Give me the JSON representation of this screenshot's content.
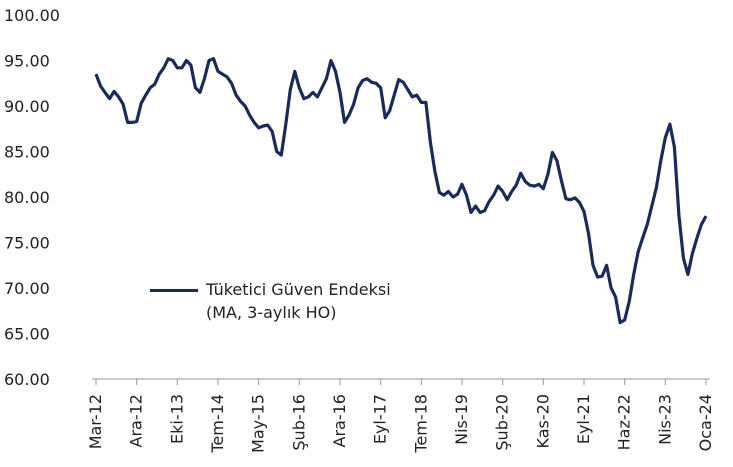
{
  "chart_data": {
    "type": "line",
    "categories": [
      "Mar-12",
      null,
      null,
      null,
      null,
      null,
      null,
      null,
      null,
      "Ara-12",
      null,
      null,
      null,
      null,
      null,
      null,
      null,
      null,
      "Eki-13",
      null,
      null,
      null,
      null,
      null,
      null,
      null,
      null,
      "Tem-14",
      null,
      null,
      null,
      null,
      null,
      null,
      null,
      null,
      "May-15",
      null,
      null,
      null,
      null,
      null,
      null,
      null,
      null,
      "Şub-16",
      null,
      null,
      null,
      null,
      null,
      null,
      null,
      null,
      "Ara-16",
      null,
      null,
      null,
      null,
      null,
      null,
      null,
      null,
      "Eyl-17",
      null,
      null,
      null,
      null,
      null,
      null,
      null,
      null,
      "Tem-18",
      null,
      null,
      null,
      null,
      null,
      null,
      null,
      null,
      "Nis-19",
      null,
      null,
      null,
      null,
      null,
      null,
      null,
      null,
      "Şub-20",
      null,
      null,
      null,
      null,
      null,
      null,
      null,
      null,
      "Kas-20",
      null,
      null,
      null,
      null,
      null,
      null,
      null,
      null,
      "Eyl-21",
      null,
      null,
      null,
      null,
      null,
      null,
      null,
      null,
      "Haz-22",
      null,
      null,
      null,
      null,
      null,
      null,
      null,
      null,
      "Nis-23",
      null,
      null,
      null,
      null,
      null,
      null,
      null,
      null,
      "Oca-24"
    ],
    "series": [
      {
        "name": "Tüketici Güven Endeksi (MA, 3-aylık HO)",
        "color": "#1a2b5a",
        "values": [
          93.5,
          92.2,
          91.5,
          90.8,
          91.6,
          91.0,
          90.2,
          88.2,
          88.2,
          88.3,
          90.3,
          91.2,
          92.0,
          92.4,
          93.5,
          94.2,
          95.2,
          95.0,
          94.2,
          94.2,
          95.0,
          94.5,
          92.0,
          91.5,
          93.0,
          95.0,
          95.2,
          93.8,
          93.5,
          93.2,
          92.5,
          91.2,
          90.5,
          90.0,
          89.0,
          88.2,
          87.6,
          87.8,
          87.9,
          87.2,
          85.0,
          84.6,
          88.0,
          91.8,
          93.8,
          92.0,
          90.8,
          91.0,
          91.5,
          91.0,
          92.0,
          93.0,
          95.0,
          93.8,
          91.5,
          88.2,
          89.0,
          90.2,
          92.0,
          92.8,
          93.0,
          92.6,
          92.5,
          92.0,
          88.7,
          89.5,
          91.2,
          92.9,
          92.6,
          91.8,
          91.0,
          91.2,
          90.4,
          90.4,
          86.0,
          82.8,
          80.5,
          80.2,
          80.6,
          80.0,
          80.3,
          81.4,
          80.2,
          78.3,
          79.0,
          78.3,
          78.5,
          79.5,
          80.2,
          81.2,
          80.6,
          79.7,
          80.6,
          81.3,
          82.6,
          81.7,
          81.3,
          81.2,
          81.4,
          80.9,
          82.5,
          84.9,
          84.0,
          81.8,
          79.8,
          79.7,
          79.9,
          79.4,
          78.4,
          76.0,
          72.5,
          71.2,
          71.3,
          72.5,
          70.0,
          69.0,
          66.2,
          66.5,
          68.5,
          71.5,
          74.0,
          75.5,
          77.0,
          79.0,
          81.0,
          84.0,
          86.5,
          88.0,
          85.5,
          78.0,
          73.3,
          71.5,
          73.8,
          75.5,
          77.0,
          77.9
        ]
      }
    ],
    "ylim": [
      60,
      100
    ],
    "yticks": [
      {
        "value": 60,
        "label": "60.00"
      },
      {
        "value": 65,
        "label": "65.00"
      },
      {
        "value": 70,
        "label": "70.00"
      },
      {
        "value": 75,
        "label": "75.00"
      },
      {
        "value": 80,
        "label": "80.00"
      },
      {
        "value": 85,
        "label": "85.00"
      },
      {
        "value": 90,
        "label": "90.00"
      },
      {
        "value": 95,
        "label": "95.00"
      },
      {
        "value": 100,
        "label": "100.00"
      }
    ],
    "grid": false,
    "legend": "lower left"
  }
}
